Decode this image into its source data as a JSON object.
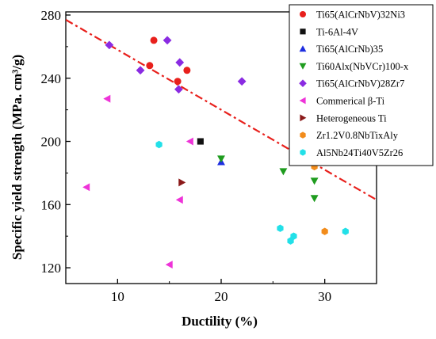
{
  "chart_data": {
    "type": "scatter",
    "title": "",
    "xlabel": "Ductility (%)",
    "ylabel": "Specific yield strength (MPa.  cm³/g)",
    "xlim": [
      5,
      35
    ],
    "ylim": [
      110,
      282
    ],
    "xticks": [
      10,
      20,
      30
    ],
    "yticks": [
      120,
      160,
      200,
      240,
      280
    ],
    "xtick_labels": [
      "10",
      "20",
      "30"
    ],
    "ytick_labels": [
      "120",
      "160",
      "200",
      "240",
      "280"
    ],
    "legend_position": "top-right",
    "trendline": {
      "style": "dash-dot",
      "color": "#e8201c",
      "points": [
        [
          5,
          277
        ],
        [
          35,
          163
        ]
      ]
    },
    "series": [
      {
        "name": "Ti65(AlCrNbV)32Ni3",
        "marker": "circle",
        "color": "#e8201c",
        "points": [
          [
            13.5,
            264
          ],
          [
            13.1,
            248
          ],
          [
            15.8,
            238
          ],
          [
            16.7,
            245
          ]
        ]
      },
      {
        "name": "Ti-6Al-4V",
        "marker": "square",
        "color": "#111111",
        "points": [
          [
            18,
            200
          ]
        ]
      },
      {
        "name": "Ti65(AlCrNb)35",
        "marker": "triangle-up",
        "color": "#1d2de0",
        "points": [
          [
            20,
            187
          ]
        ]
      },
      {
        "name": "Ti60Alx(NbVCr)100-x",
        "marker": "triangle-down",
        "color": "#1f9c1f",
        "points": [
          [
            20,
            189
          ],
          [
            26,
            181
          ],
          [
            29,
            175
          ],
          [
            29,
            164
          ]
        ]
      },
      {
        "name": "Ti65(AlCrNbV)28Zr7",
        "marker": "diamond",
        "color": "#8a2be2",
        "points": [
          [
            9.2,
            261
          ],
          [
            12.2,
            245
          ],
          [
            14.8,
            264
          ],
          [
            16,
            250
          ],
          [
            15.9,
            233
          ],
          [
            22,
            238
          ]
        ]
      },
      {
        "name": "Commerical β-Ti",
        "marker": "triangle-left",
        "color": "#ee33d8",
        "points": [
          [
            9.0,
            227
          ],
          [
            7.0,
            171
          ],
          [
            17.0,
            200
          ],
          [
            16.0,
            163
          ],
          [
            15.0,
            122
          ]
        ]
      },
      {
        "name": "Heterogeneous Ti",
        "marker": "triangle-right",
        "color": "#8b1a1a",
        "points": [
          [
            16.2,
            174
          ]
        ]
      },
      {
        "name": "Zr1.2V0.8NbTixAly",
        "marker": "hexagon",
        "color": "#f28c1b",
        "points": [
          [
            29,
            184
          ],
          [
            30,
            143
          ]
        ]
      },
      {
        "name": "Al5Nb24Ti40V5Zr26",
        "marker": "hexagon",
        "color": "#22e0e8",
        "points": [
          [
            14,
            198
          ],
          [
            25.7,
            145
          ],
          [
            27,
            140
          ],
          [
            26.7,
            137
          ],
          [
            32,
            143
          ]
        ]
      }
    ]
  }
}
